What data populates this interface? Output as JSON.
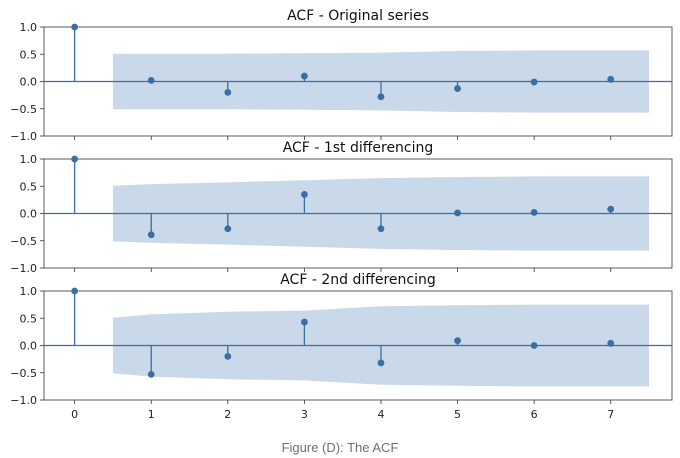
{
  "figure_caption": "Figure (D): The ACF",
  "colors": {
    "stem": "#3a6ea5",
    "baseline": "#3a6ea5",
    "confidence_band": "#c9d9e9",
    "axes": "#333333"
  },
  "chart_data": [
    {
      "type": "stem",
      "title": "ACF - Original series",
      "x": [
        0,
        1,
        2,
        3,
        4,
        5,
        6,
        7
      ],
      "values": [
        1.0,
        0.02,
        -0.2,
        0.1,
        -0.28,
        -0.13,
        -0.01,
        0.04
      ],
      "confidence_band": {
        "x": [
          0.5,
          1,
          2,
          3,
          4,
          5,
          6,
          7,
          7.5
        ],
        "upper": [
          0.51,
          0.51,
          0.51,
          0.52,
          0.53,
          0.56,
          0.57,
          0.57,
          0.57
        ]
      },
      "xlim": [
        -0.4,
        7.8
      ],
      "ylim": [
        -1.0,
        1.0
      ],
      "y_ticks": [
        "1.0",
        "0.5",
        "0.0",
        "−0.5",
        "−1.0"
      ],
      "grid": false
    },
    {
      "type": "stem",
      "title": "ACF - 1st differencing",
      "x": [
        0,
        1,
        2,
        3,
        4,
        5,
        6,
        7
      ],
      "values": [
        1.0,
        -0.39,
        -0.28,
        0.35,
        -0.28,
        0.01,
        0.02,
        0.08
      ],
      "confidence_band": {
        "x": [
          0.5,
          1,
          2,
          3,
          4,
          5,
          6,
          7,
          7.5
        ],
        "upper": [
          0.51,
          0.54,
          0.57,
          0.61,
          0.65,
          0.67,
          0.68,
          0.68,
          0.68
        ]
      },
      "xlim": [
        -0.4,
        7.8
      ],
      "ylim": [
        -1.0,
        1.0
      ],
      "y_ticks": [
        "1.0",
        "0.5",
        "0.0",
        "−0.5",
        "−1.0"
      ],
      "grid": false
    },
    {
      "type": "stem",
      "title": "ACF - 2nd differencing",
      "x": [
        0,
        1,
        2,
        3,
        4,
        5,
        6,
        7
      ],
      "values": [
        1.0,
        -0.53,
        -0.2,
        0.43,
        -0.32,
        0.09,
        0.0,
        0.04
      ],
      "confidence_band": {
        "x": [
          0.5,
          1,
          2,
          3,
          4,
          5,
          6,
          7,
          7.5
        ],
        "upper": [
          0.51,
          0.57,
          0.62,
          0.64,
          0.72,
          0.74,
          0.75,
          0.75,
          0.75
        ]
      },
      "xlim": [
        -0.4,
        7.8
      ],
      "ylim": [
        -1.0,
        1.0
      ],
      "y_ticks": [
        "1.0",
        "0.5",
        "0.0",
        "−0.5",
        "−1.0"
      ],
      "x_ticks": [
        "0",
        "1",
        "2",
        "3",
        "4",
        "5",
        "6",
        "7"
      ],
      "grid": false
    }
  ]
}
